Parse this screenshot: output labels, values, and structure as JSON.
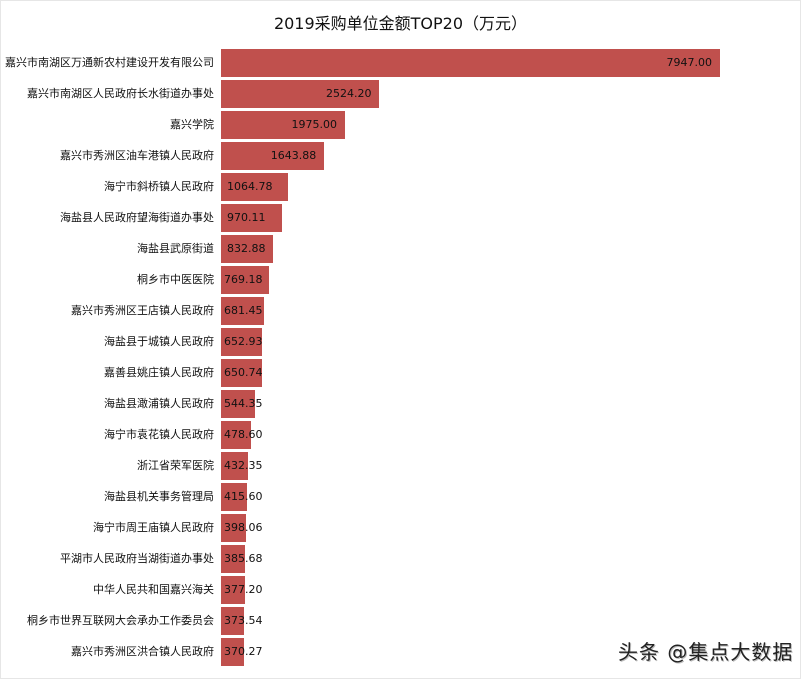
{
  "chart_data": {
    "type": "bar",
    "orientation": "horizontal",
    "title": "2019采购单位金额TOP20（万元）",
    "xlabel": "",
    "ylabel": "",
    "unit": "万元",
    "grid": false,
    "legend": null,
    "bar_color": "#c0504d",
    "categories": [
      "嘉兴市南湖区万通新农村建设开发有限公司",
      "嘉兴市南湖区人民政府长水街道办事处",
      "嘉兴学院",
      "嘉兴市秀洲区油车港镇人民政府",
      "海宁市斜桥镇人民政府",
      "海盐县人民政府望海街道办事处",
      "海盐县武原街道",
      "桐乡市中医医院",
      "嘉兴市秀洲区王店镇人民政府",
      "海盐县于城镇人民政府",
      "嘉善县姚庄镇人民政府",
      "海盐县澉浦镇人民政府",
      "海宁市袁花镇人民政府",
      "浙江省荣军医院",
      "海盐县机关事务管理局",
      "海宁市周王庙镇人民政府",
      "平湖市人民政府当湖街道办事处",
      "中华人民共和国嘉兴海关",
      "桐乡市世界互联网大会承办工作委员会",
      "嘉兴市秀洲区洪合镇人民政府"
    ],
    "values": [
      7947.0,
      2524.2,
      1975.0,
      1643.88,
      1064.78,
      970.11,
      832.88,
      769.18,
      681.45,
      652.93,
      650.74,
      544.35,
      478.6,
      432.35,
      415.6,
      398.06,
      385.68,
      377.2,
      373.54,
      370.27
    ],
    "value_labels": [
      "7947.00",
      "2524.20",
      "1975.00",
      "1643.88",
      "1064.78",
      "970.11",
      "832.88",
      "769.18",
      "681.45",
      "652.93",
      "650.74",
      "544.35",
      "478.60",
      "432.35",
      "415.60",
      "398.06",
      "385.68",
      "377.20",
      "373.54",
      "370.27"
    ]
  },
  "watermark": "头条 @集点大数据"
}
